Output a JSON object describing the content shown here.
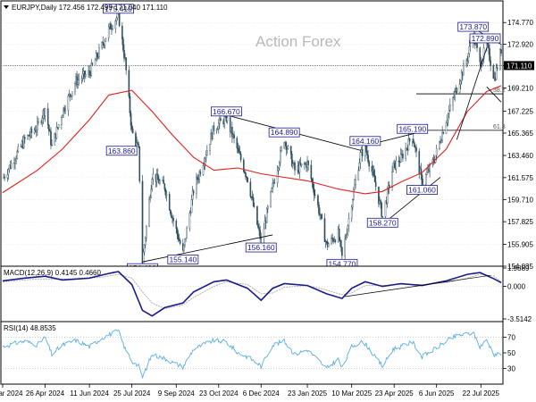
{
  "header": {
    "symbol_line": "EURJPY,Daily  172.456 172.499 171.040 171.110"
  },
  "watermark": "Action Forex",
  "colors": {
    "candle": "#2f4f5f",
    "ma": "#e0201b",
    "trendline": "#000000",
    "label_border": "#1a1a8c",
    "macd_main": "#1a1a8c",
    "macd_signal": "#a9a9a9",
    "rsi_line": "#5aaee0",
    "grid": "#d8d8d8"
  },
  "chart_data": [
    {
      "type": "candlestick",
      "title": "EURJPY,Daily",
      "ohlc_last": {
        "open": 172.456,
        "high": 172.499,
        "low": 171.04,
        "close": 171.11
      },
      "x_tick_labels": [
        "13 Mar 2024",
        "26 Apr 2024",
        "11 Jun 2024",
        "25 Jul 2024",
        "9 Sep 2024",
        "23 Oct 2024",
        "6 Dec 2024",
        "23 Jan 2025",
        "10 Mar 2025",
        "23 Apr 2025",
        "6 Jun 2025",
        "22 Jul 2025"
      ],
      "y_ticks": [
        174.77,
        172.92,
        171.11,
        169.21,
        167.225,
        165.365,
        163.46,
        161.575,
        159.71,
        157.825,
        155.905,
        154.035
      ],
      "ylim": [
        154.035,
        175.7
      ],
      "current_price": "171.110",
      "price_series": [
        [
          "2024-03-13",
          161.5
        ],
        [
          "2024-03-25",
          163.2
        ],
        [
          "2024-04-05",
          164.8
        ],
        [
          "2024-04-18",
          165.9
        ],
        [
          "2024-04-26",
          167.5
        ],
        [
          "2024-05-03",
          164.2
        ],
        [
          "2024-05-14",
          167.2
        ],
        [
          "2024-05-28",
          169.8
        ],
        [
          "2024-06-11",
          170.5
        ],
        [
          "2024-06-24",
          172.8
        ],
        [
          "2024-07-01",
          174.2
        ],
        [
          "2024-07-11",
          175.41
        ],
        [
          "2024-07-18",
          171.5
        ],
        [
          "2024-07-25",
          165.5
        ],
        [
          "2024-08-01",
          163.86
        ],
        [
          "2024-08-05",
          154.4
        ],
        [
          "2024-08-15",
          161.8
        ],
        [
          "2024-08-28",
          160.8
        ],
        [
          "2024-09-05",
          158.2
        ],
        [
          "2024-09-16",
          155.14
        ],
        [
          "2024-09-27",
          160.5
        ],
        [
          "2024-10-08",
          163.2
        ],
        [
          "2024-10-18",
          165.8
        ],
        [
          "2024-10-31",
          166.67
        ],
        [
          "2024-11-12",
          163.8
        ],
        [
          "2024-11-22",
          161.5
        ],
        [
          "2024-12-03",
          157.2
        ],
        [
          "2024-12-06",
          156.16
        ],
        [
          "2024-12-18",
          160.8
        ],
        [
          "2024-12-30",
          164.89
        ],
        [
          "2025-01-10",
          162.2
        ],
        [
          "2025-01-23",
          162.8
        ],
        [
          "2025-02-04",
          158.8
        ],
        [
          "2025-02-12",
          155.8
        ],
        [
          "2025-02-24",
          156.8
        ],
        [
          "2025-02-28",
          154.77
        ],
        [
          "2025-03-10",
          159.5
        ],
        [
          "2025-03-19",
          163.5
        ],
        [
          "2025-03-24",
          164.16
        ],
        [
          "2025-04-03",
          161.2
        ],
        [
          "2025-04-11",
          158.27
        ],
        [
          "2025-04-22",
          162.5
        ],
        [
          "2025-04-30",
          163.2
        ],
        [
          "2025-05-12",
          165.19
        ],
        [
          "2025-05-22",
          161.06
        ],
        [
          "2025-06-04",
          163.2
        ],
        [
          "2025-06-16",
          166.5
        ],
        [
          "2025-06-27",
          169.2
        ],
        [
          "2025-07-08",
          171.8
        ],
        [
          "2025-07-14",
          173.87
        ],
        [
          "2025-07-21",
          171.2
        ],
        [
          "2025-07-28",
          172.89
        ],
        [
          "2025-08-05",
          170.0
        ],
        [
          "2025-08-12",
          172.456
        ]
      ],
      "moving_average": [
        [
          "2024-03-13",
          160.3
        ],
        [
          "2024-04-18",
          162.2
        ],
        [
          "2024-05-14",
          164.0
        ],
        [
          "2024-06-11",
          166.5
        ],
        [
          "2024-07-01",
          168.6
        ],
        [
          "2024-07-25",
          169.0
        ],
        [
          "2024-08-15",
          167.2
        ],
        [
          "2024-09-05",
          165.2
        ],
        [
          "2024-09-27",
          163.3
        ],
        [
          "2024-10-18",
          162.2
        ],
        [
          "2024-11-12",
          162.4
        ],
        [
          "2024-12-06",
          161.9
        ],
        [
          "2024-12-30",
          161.6
        ],
        [
          "2025-01-23",
          161.3
        ],
        [
          "2025-02-24",
          160.6
        ],
        [
          "2025-03-24",
          160.2
        ],
        [
          "2025-04-11",
          160.4
        ],
        [
          "2025-04-30",
          161.2
        ],
        [
          "2025-05-22",
          162.0
        ],
        [
          "2025-06-16",
          164.0
        ],
        [
          "2025-07-08",
          167.2
        ],
        [
          "2025-07-28",
          168.9
        ],
        [
          "2025-08-12",
          169.4
        ]
      ],
      "annotations": [
        {
          "date": "2024-07-11",
          "value": "175.410",
          "anchor": "top"
        },
        {
          "date": "2024-08-01",
          "value": "163.860",
          "anchor": "left"
        },
        {
          "date": "2024-08-05",
          "value": "154.400",
          "anchor": "bottom"
        },
        {
          "date": "2024-09-16",
          "value": "155.140",
          "anchor": "bottom"
        },
        {
          "date": "2024-10-31",
          "value": "166.670",
          "anchor": "top"
        },
        {
          "date": "2024-12-06",
          "value": "156.160",
          "anchor": "bottom"
        },
        {
          "date": "2024-12-30",
          "value": "164.890",
          "anchor": "top"
        },
        {
          "date": "2025-02-28",
          "value": "154.770",
          "anchor": "bottom"
        },
        {
          "date": "2025-03-24",
          "value": "164.160",
          "anchor": "top"
        },
        {
          "date": "2025-04-11",
          "value": "158.270",
          "anchor": "bottom"
        },
        {
          "date": "2025-05-12",
          "value": "165.190",
          "anchor": "top"
        },
        {
          "date": "2025-05-22",
          "value": "161.060",
          "anchor": "bottom"
        },
        {
          "date": "2025-07-14",
          "value": "173.870",
          "anchor": "top"
        },
        {
          "date": "2025-07-28",
          "value": "172.890",
          "anchor": "top"
        }
      ],
      "fib_levels": [
        {
          "label": "38.2",
          "price": 168.7
        },
        {
          "label": "61.8",
          "price": 165.6
        }
      ],
      "trendlines": [
        {
          "from": [
            "2024-08-05",
            154.4
          ],
          "to": [
            "2024-12-18",
            156.7
          ]
        },
        {
          "from": [
            "2024-10-31",
            166.9
          ],
          "to": [
            "2025-03-19",
            163.9
          ]
        },
        {
          "from": [
            "2025-03-24",
            164.3
          ],
          "to": [
            "2025-05-22",
            165.5
          ]
        },
        {
          "from": [
            "2025-04-11",
            157.6
          ],
          "to": [
            "2025-06-10",
            161.6
          ]
        },
        {
          "from": [
            "2025-06-27",
            164.8
          ],
          "to": [
            "2025-07-28",
            172.6
          ]
        },
        {
          "from": [
            "2025-07-14",
            174.3
          ],
          "to": [
            "2025-08-12",
            172.9
          ]
        },
        {
          "from": [
            "2025-07-28",
            169.3
          ],
          "to": [
            "2025-08-12",
            168.0
          ]
        }
      ]
    },
    {
      "type": "line",
      "title": "MACD(12,26,9) 0.4145 0.4660",
      "y_tick_labels": [
        "1.9889",
        "0.000",
        "-3.5142"
      ],
      "ylim": [
        -3.5142,
        1.9889
      ],
      "series": [
        {
          "values": [
            [
              "2024-03-13",
              0.6
            ],
            [
              "2024-04-05",
              0.9
            ],
            [
              "2024-04-26",
              1.1
            ],
            [
              "2024-05-14",
              0.7
            ],
            [
              "2024-06-11",
              0.9
            ],
            [
              "2024-07-01",
              1.4
            ],
            [
              "2024-07-11",
              1.6
            ],
            [
              "2024-07-25",
              0.2
            ],
            [
              "2024-08-05",
              -2.6
            ],
            [
              "2024-08-15",
              -3.2
            ],
            [
              "2024-08-28",
              -2.3
            ],
            [
              "2024-09-16",
              -1.8
            ],
            [
              "2024-09-27",
              -0.6
            ],
            [
              "2024-10-18",
              0.5
            ],
            [
              "2024-10-31",
              0.7
            ],
            [
              "2024-11-22",
              -0.2
            ],
            [
              "2024-12-06",
              -1.5
            ],
            [
              "2024-12-18",
              -0.2
            ],
            [
              "2024-12-30",
              0.3
            ],
            [
              "2025-01-23",
              0.1
            ],
            [
              "2025-02-12",
              -0.8
            ],
            [
              "2025-02-28",
              -1.3
            ],
            [
              "2025-03-10",
              -0.2
            ],
            [
              "2025-03-24",
              0.5
            ],
            [
              "2025-04-11",
              0.0
            ],
            [
              "2025-04-30",
              0.3
            ],
            [
              "2025-05-22",
              0.1
            ],
            [
              "2025-06-16",
              0.6
            ],
            [
              "2025-07-08",
              1.3
            ],
            [
              "2025-07-21",
              1.5
            ],
            [
              "2025-08-05",
              0.8
            ],
            [
              "2025-08-12",
              0.41
            ]
          ]
        },
        {
          "values": [
            [
              "2024-03-13",
              0.5
            ],
            [
              "2024-04-18",
              0.8
            ],
            [
              "2024-05-28",
              0.8
            ],
            [
              "2024-06-24",
              1.0
            ],
            [
              "2024-07-11",
              1.3
            ],
            [
              "2024-07-25",
              0.9
            ],
            [
              "2024-08-05",
              -0.6
            ],
            [
              "2024-08-15",
              -1.8
            ],
            [
              "2024-08-28",
              -2.4
            ],
            [
              "2024-09-16",
              -2.0
            ],
            [
              "2024-09-27",
              -1.2
            ],
            [
              "2024-10-18",
              0.0
            ],
            [
              "2024-10-31",
              0.5
            ],
            [
              "2024-11-22",
              0.2
            ],
            [
              "2024-12-06",
              -0.8
            ],
            [
              "2024-12-18",
              -0.7
            ],
            [
              "2024-12-30",
              -0.1
            ],
            [
              "2025-01-23",
              0.1
            ],
            [
              "2025-02-12",
              -0.4
            ],
            [
              "2025-02-28",
              -0.9
            ],
            [
              "2025-03-10",
              -0.7
            ],
            [
              "2025-03-24",
              0.1
            ],
            [
              "2025-04-11",
              0.1
            ],
            [
              "2025-04-30",
              0.2
            ],
            [
              "2025-05-22",
              0.2
            ],
            [
              "2025-06-16",
              0.4
            ],
            [
              "2025-07-08",
              0.9
            ],
            [
              "2025-07-21",
              1.3
            ],
            [
              "2025-08-05",
              1.1
            ],
            [
              "2025-08-12",
              0.47
            ]
          ]
        }
      ],
      "trendline": {
        "from": [
          "2025-03-03",
          -1.1
        ],
        "to": [
          "2025-08-01",
          1.2
        ]
      }
    },
    {
      "type": "line",
      "title": "RSI(14) 48.8535",
      "y_tick_labels": [
        "70",
        "50",
        "30"
      ],
      "ylim": [
        10,
        90
      ],
      "levels": [
        70,
        30
      ],
      "series": [
        {
          "values": [
            [
              "2024-03-13",
              58
            ],
            [
              "2024-03-25",
              62
            ],
            [
              "2024-04-05",
              65
            ],
            [
              "2024-04-18",
              60
            ],
            [
              "2024-04-26",
              70
            ],
            [
              "2024-05-03",
              48
            ],
            [
              "2024-05-14",
              60
            ],
            [
              "2024-05-28",
              66
            ],
            [
              "2024-06-11",
              58
            ],
            [
              "2024-06-24",
              69
            ],
            [
              "2024-07-01",
              73
            ],
            [
              "2024-07-11",
              78
            ],
            [
              "2024-07-18",
              55
            ],
            [
              "2024-07-25",
              40
            ],
            [
              "2024-08-01",
              33
            ],
            [
              "2024-08-05",
              19
            ],
            [
              "2024-08-15",
              48
            ],
            [
              "2024-08-28",
              43
            ],
            [
              "2024-09-05",
              38
            ],
            [
              "2024-09-16",
              32
            ],
            [
              "2024-09-27",
              55
            ],
            [
              "2024-10-08",
              61
            ],
            [
              "2024-10-18",
              66
            ],
            [
              "2024-10-31",
              64
            ],
            [
              "2024-11-12",
              50
            ],
            [
              "2024-11-22",
              45
            ],
            [
              "2024-12-03",
              36
            ],
            [
              "2024-12-06",
              33
            ],
            [
              "2024-12-18",
              60
            ],
            [
              "2024-12-30",
              65
            ],
            [
              "2025-01-10",
              48
            ],
            [
              "2025-01-23",
              54
            ],
            [
              "2025-02-04",
              40
            ],
            [
              "2025-02-12",
              30
            ],
            [
              "2025-02-24",
              42
            ],
            [
              "2025-02-28",
              30
            ],
            [
              "2025-03-10",
              58
            ],
            [
              "2025-03-19",
              64
            ],
            [
              "2025-03-24",
              62
            ],
            [
              "2025-04-03",
              45
            ],
            [
              "2025-04-11",
              33
            ],
            [
              "2025-04-22",
              55
            ],
            [
              "2025-04-30",
              58
            ],
            [
              "2025-05-12",
              64
            ],
            [
              "2025-05-22",
              45
            ],
            [
              "2025-06-04",
              55
            ],
            [
              "2025-06-16",
              65
            ],
            [
              "2025-06-27",
              72
            ],
            [
              "2025-07-08",
              74
            ],
            [
              "2025-07-14",
              76
            ],
            [
              "2025-07-21",
              58
            ],
            [
              "2025-07-28",
              66
            ],
            [
              "2025-08-05",
              48
            ],
            [
              "2025-08-12",
              49
            ]
          ]
        }
      ]
    }
  ]
}
